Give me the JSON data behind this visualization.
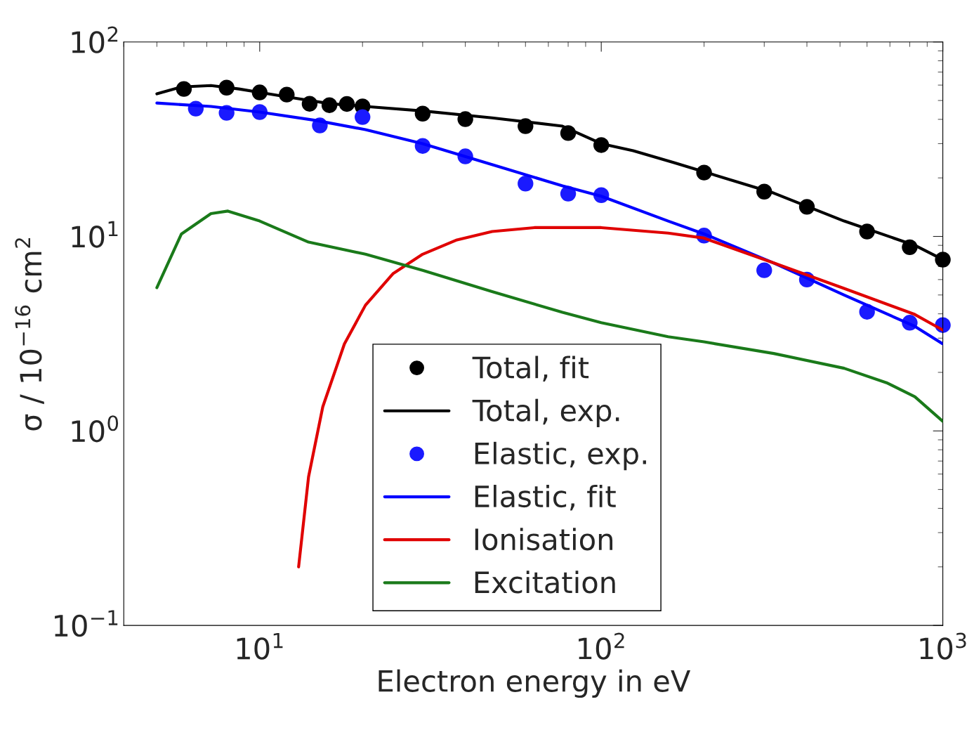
{
  "chart_data": {
    "type": "line",
    "xlabel": "Electron energy in eV",
    "ylabel": "σ / 10$^{−16}$ cm$^{2}$",
    "log": "xy",
    "xlim": [
      4,
      1000
    ],
    "ylim": [
      0.1,
      100
    ],
    "xticks": [
      {
        "value": 10,
        "label": "10$^{1}$"
      },
      {
        "value": 100,
        "label": "10$^{2}$"
      },
      {
        "value": 1000,
        "label": "10$^{3}$"
      }
    ],
    "yticks": [
      {
        "value": 0.1,
        "label": "10$^{−1}$"
      },
      {
        "value": 1,
        "label": "10$^{0}$"
      },
      {
        "value": 10,
        "label": "10$^{1}$"
      },
      {
        "value": 100,
        "label": "10$^{2}$"
      }
    ],
    "grid": false,
    "legend": "bottom",
    "series": [
      {
        "name": "Total, fit",
        "type": "scatter",
        "marker": "circle",
        "color": "#000000",
        "x": [
          6,
          8,
          10,
          12,
          14,
          16,
          18,
          20,
          30,
          40,
          60,
          80,
          100,
          200,
          300,
          400,
          600,
          800,
          1000
        ],
        "values": [
          57.3,
          58.2,
          55,
          53.6,
          48.1,
          47.3,
          48,
          46.6,
          42.8,
          40.1,
          36.9,
          34,
          29.5,
          21.3,
          17,
          14.2,
          10.6,
          8.8,
          7.6
        ]
      },
      {
        "name": "Total, exp.",
        "color": "#000000",
        "x": [
          5,
          5.9,
          7.2,
          8.7,
          10,
          12.7,
          16.1,
          20.4,
          30,
          47.9,
          77,
          100,
          124,
          164,
          200,
          320,
          514,
          828,
          1000
        ],
        "values": [
          54.1,
          58.7,
          59.7,
          57.3,
          55,
          51.4,
          48.1,
          46.6,
          44.2,
          40.7,
          36.9,
          30,
          27.6,
          23.9,
          21.5,
          16.7,
          12,
          9,
          7.6
        ]
      },
      {
        "name": "Elastic, exp.",
        "type": "scatter",
        "marker": "circle",
        "color": "#1a1aff",
        "x": [
          6.5,
          8,
          10,
          15,
          20,
          30,
          40,
          60,
          80,
          100,
          200,
          300,
          400,
          600,
          800,
          1000
        ],
        "values": [
          45.4,
          43.2,
          43.6,
          37.2,
          41.1,
          29.2,
          25.8,
          18.7,
          16.6,
          16.3,
          10.1,
          6.7,
          6,
          4.1,
          3.6,
          3.5
        ]
      },
      {
        "name": "Elastic, fit",
        "color": "#0000ff",
        "x": [
          5,
          7.2,
          10,
          14.6,
          20.4,
          30,
          47.9,
          77,
          100,
          157,
          200,
          320,
          514,
          828,
          1000
        ],
        "values": [
          48.5,
          46.6,
          43.6,
          39.5,
          35.4,
          30,
          23.4,
          18.2,
          16.1,
          12,
          10.3,
          7.3,
          5,
          3.45,
          2.8
        ]
      },
      {
        "name": "Ionisation",
        "color": "#e00000",
        "x": [
          13,
          13.9,
          15.3,
          17.7,
          20.4,
          24.6,
          30,
          37.8,
          47.9,
          63.7,
          100,
          157,
          200,
          320,
          514,
          828,
          1000
        ],
        "values": [
          0.2,
          0.58,
          1.33,
          2.8,
          4.43,
          6.45,
          8.1,
          9.6,
          10.6,
          11.1,
          11.1,
          10.4,
          9.8,
          7.3,
          5.4,
          3.97,
          3.3
        ]
      },
      {
        "name": "Excitation",
        "color": "#1a7a1a",
        "x": [
          5,
          5.9,
          7.2,
          8.07,
          10,
          13.9,
          20.4,
          30,
          47.9,
          77,
          100,
          157,
          200,
          320,
          514,
          684,
          828,
          1000
        ],
        "values": [
          5.45,
          10.3,
          13.1,
          13.5,
          12,
          9.35,
          8.1,
          6.7,
          5.2,
          4.07,
          3.6,
          3.05,
          2.87,
          2.5,
          2.1,
          1.77,
          1.5,
          1.12
        ]
      }
    ]
  }
}
